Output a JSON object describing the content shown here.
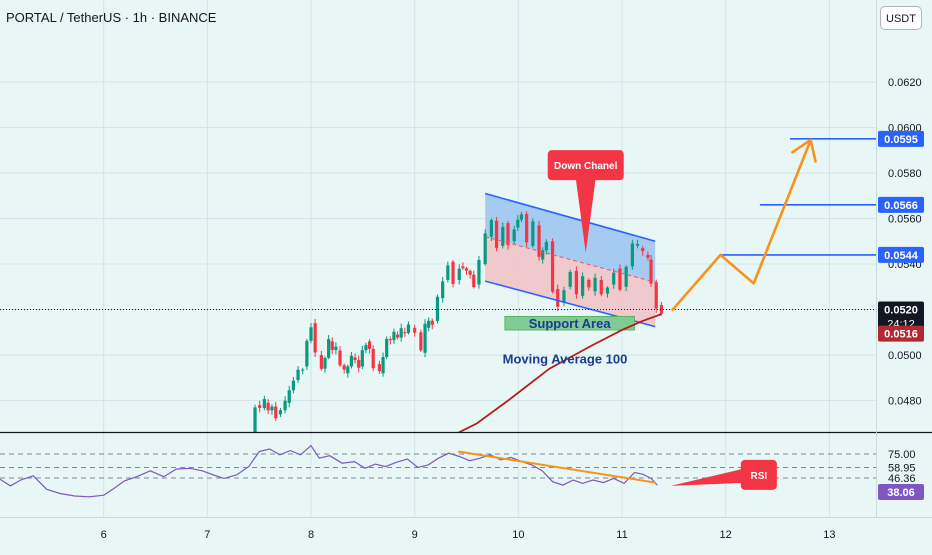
{
  "header": {
    "title": "PORTAL / TetherUS · 1h · BINANCE",
    "currency": "USDT"
  },
  "colors": {
    "background": "#e9f6f6",
    "grid": "#cfe6e6",
    "candle_up": "#089981",
    "candle_down": "#f23645",
    "channel_blue": "#2962ff",
    "channel_upper_fill": "#9fc6ef",
    "channel_lower_fill": "#f1c4c8",
    "support_fill": "#81c995",
    "ma_line": "#b71c1c",
    "projection": "#f7931a",
    "rsi_line": "#7e57c2",
    "price_tag_blue": "#2962ff",
    "price_tag_dark": "#131722",
    "price_tag_red": "#b22833",
    "callout_red": "#f23645"
  },
  "chart_data": [
    {
      "type": "candlestick",
      "title": "PORTAL / TetherUS · 1h · BINANCE",
      "x_unit": "day of month (hourly candles)",
      "xlim": [
        5.0,
        13.45
      ],
      "x_ticks": [
        "6",
        "7",
        "8",
        "9",
        "10",
        "11",
        "12",
        "13"
      ],
      "ylim": [
        0.04662,
        0.0656
      ],
      "y_ticks": [
        "0.0480",
        "0.0500",
        "0.0520",
        "0.0540",
        "0.0560",
        "0.0580",
        "0.0600",
        "0.0620"
      ],
      "price_path": [
        [
          7.4,
          0.046
        ],
        [
          7.46,
          0.0478
        ],
        [
          7.55,
          0.0479
        ],
        [
          7.66,
          0.0474
        ],
        [
          7.75,
          0.0479
        ],
        [
          7.83,
          0.0489
        ],
        [
          7.92,
          0.0495
        ],
        [
          8.0,
          0.0514
        ],
        [
          8.04,
          0.05
        ],
        [
          8.1,
          0.0494
        ],
        [
          8.17,
          0.0506
        ],
        [
          8.24,
          0.0502
        ],
        [
          8.32,
          0.0492
        ],
        [
          8.39,
          0.0499
        ],
        [
          8.46,
          0.0495
        ],
        [
          8.53,
          0.0506
        ],
        [
          8.6,
          0.0496
        ],
        [
          8.66,
          0.0492
        ],
        [
          8.73,
          0.0507
        ],
        [
          8.8,
          0.0509
        ],
        [
          8.87,
          0.051
        ],
        [
          8.94,
          0.0512
        ],
        [
          9.0,
          0.051
        ],
        [
          9.06,
          0.0501
        ],
        [
          9.1,
          0.0512
        ],
        [
          9.17,
          0.0515
        ],
        [
          9.22,
          0.0525
        ],
        [
          9.27,
          0.0533
        ],
        [
          9.32,
          0.0541
        ],
        [
          9.37,
          0.0533
        ],
        [
          9.43,
          0.0539
        ],
        [
          9.5,
          0.0537
        ],
        [
          9.57,
          0.0531
        ],
        [
          9.62,
          0.054
        ],
        [
          9.68,
          0.0552
        ],
        [
          9.74,
          0.0559
        ],
        [
          9.79,
          0.0548
        ],
        [
          9.85,
          0.0558
        ],
        [
          9.9,
          0.055
        ],
        [
          9.96,
          0.0556
        ],
        [
          10.03,
          0.0562
        ],
        [
          10.08,
          0.0548
        ],
        [
          10.14,
          0.0557
        ],
        [
          10.2,
          0.0542
        ],
        [
          10.27,
          0.055
        ],
        [
          10.33,
          0.0529
        ],
        [
          10.38,
          0.0523
        ],
        [
          10.44,
          0.053
        ],
        [
          10.5,
          0.0537
        ],
        [
          10.56,
          0.0526
        ],
        [
          10.62,
          0.0533
        ],
        [
          10.68,
          0.0528
        ],
        [
          10.74,
          0.0533
        ],
        [
          10.8,
          0.0527
        ],
        [
          10.86,
          0.0531
        ],
        [
          10.92,
          0.0538
        ],
        [
          10.98,
          0.053
        ],
        [
          11.04,
          0.0539
        ],
        [
          11.1,
          0.0548
        ],
        [
          11.15,
          0.0547
        ],
        [
          11.2,
          0.0544
        ],
        [
          11.25,
          0.0542
        ],
        [
          11.28,
          0.0532
        ],
        [
          11.33,
          0.0522
        ],
        [
          11.38,
          0.052
        ]
      ],
      "moving_average_100": [
        [
          9.25,
          0.0462
        ],
        [
          9.6,
          0.047
        ],
        [
          9.9,
          0.048
        ],
        [
          10.3,
          0.0494
        ],
        [
          10.7,
          0.0504
        ],
        [
          11.0,
          0.0511
        ],
        [
          11.2,
          0.0515
        ],
        [
          11.38,
          0.0518
        ]
      ],
      "down_channel": {
        "upper": [
          [
            9.68,
            0.0571
          ],
          [
            11.32,
            0.055
          ]
        ],
        "middle": [
          [
            9.68,
            0.0552
          ],
          [
            11.32,
            0.0532
          ]
        ],
        "lower": [
          [
            9.68,
            0.05325
          ],
          [
            11.32,
            0.05125
          ]
        ]
      },
      "support_zone": {
        "x_range": [
          9.87,
          11.12
        ],
        "y_range": [
          0.0511,
          0.0517
        ],
        "label": "Support Area"
      },
      "ma_label": {
        "text": "Moving Average 100",
        "x": 10.45,
        "y": 0.04985
      },
      "callout": {
        "text": "Down Chanel",
        "x": 10.65,
        "y": 0.0583,
        "pointer": [
          10.65,
          0.0545
        ]
      },
      "projection_path": [
        [
          11.48,
          0.05195
        ],
        [
          11.95,
          0.0544
        ],
        [
          12.27,
          0.05315
        ],
        [
          12.82,
          0.05945
        ]
      ],
      "target_levels": [
        {
          "price": 0.0595,
          "label": "0.0595",
          "x_start": 12.62
        },
        {
          "price": 0.0566,
          "label": "0.0566",
          "x_start": 12.33
        },
        {
          "price": 0.0544,
          "label": "0.0544",
          "x_start": 11.95
        }
      ],
      "current_price": {
        "price": 0.052,
        "label": "0.0520",
        "countdown": "24:12"
      },
      "ma_price": {
        "price": 0.0516,
        "label": "0.0516"
      }
    },
    {
      "type": "line",
      "title": "RSI",
      "ylim": [
        0,
        100
      ],
      "reference_levels": [
        75.0,
        58.95,
        46.36
      ],
      "reference_labels": [
        "75.00",
        "58.95",
        "46.36"
      ],
      "value_label": "38.06",
      "values": [
        [
          5.0,
          45
        ],
        [
          5.1,
          37
        ],
        [
          5.2,
          44
        ],
        [
          5.32,
          49
        ],
        [
          5.45,
          33
        ],
        [
          5.58,
          28
        ],
        [
          5.72,
          25
        ],
        [
          5.86,
          24
        ],
        [
          6.0,
          26
        ],
        [
          6.1,
          34
        ],
        [
          6.2,
          43
        ],
        [
          6.32,
          48
        ],
        [
          6.45,
          55
        ],
        [
          6.58,
          48
        ],
        [
          6.7,
          57
        ],
        [
          6.83,
          58
        ],
        [
          6.95,
          55
        ],
        [
          7.06,
          50
        ],
        [
          7.16,
          46
        ],
        [
          7.28,
          50
        ],
        [
          7.4,
          60
        ],
        [
          7.5,
          78
        ],
        [
          7.6,
          81
        ],
        [
          7.7,
          74
        ],
        [
          7.8,
          79
        ],
        [
          7.9,
          74
        ],
        [
          8.0,
          85
        ],
        [
          8.08,
          70
        ],
        [
          8.18,
          73
        ],
        [
          8.3,
          64
        ],
        [
          8.42,
          66
        ],
        [
          8.52,
          58
        ],
        [
          8.62,
          63
        ],
        [
          8.72,
          60
        ],
        [
          8.82,
          65
        ],
        [
          8.93,
          69
        ],
        [
          9.03,
          59
        ],
        [
          9.13,
          62
        ],
        [
          9.23,
          70
        ],
        [
          9.33,
          76
        ],
        [
          9.43,
          72
        ],
        [
          9.53,
          67
        ],
        [
          9.63,
          70
        ],
        [
          9.73,
          74
        ],
        [
          9.83,
          68
        ],
        [
          9.93,
          71
        ],
        [
          10.03,
          66
        ],
        [
          10.13,
          62
        ],
        [
          10.23,
          55
        ],
        [
          10.33,
          42
        ],
        [
          10.43,
          38
        ],
        [
          10.53,
          44
        ],
        [
          10.62,
          40
        ],
        [
          10.72,
          44
        ],
        [
          10.82,
          41
        ],
        [
          10.92,
          46
        ],
        [
          11.02,
          40
        ],
        [
          11.12,
          53
        ],
        [
          11.2,
          51
        ],
        [
          11.28,
          46
        ],
        [
          11.34,
          38
        ]
      ],
      "trendline": [
        [
          9.42,
          78
        ],
        [
          11.32,
          41
        ]
      ],
      "callout": {
        "text": "RSI",
        "x": 12.32,
        "y": 49,
        "pointer": [
          11.47,
          37
        ]
      }
    }
  ]
}
